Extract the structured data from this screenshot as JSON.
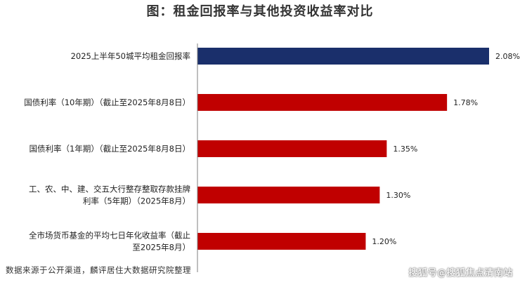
{
  "title": "图：租金回报率与其他投资收益率对比",
  "source": "数据来源于公开渠道，麟评居住大数据研究院整理",
  "watermark": "搜狐号@搜狐焦点清南站",
  "colors": {
    "highlight": "#1a2f6b",
    "other": "#c00000",
    "axis": "#7f7f7f"
  },
  "chart_data": {
    "type": "bar",
    "orientation": "horizontal",
    "title": "图：租金回报率与其他投资收益率对比",
    "categories": [
      [
        "2025上半年50城平均租金回报率"
      ],
      [
        "国债利率（10年期）（截止至2025年8月8日）"
      ],
      [
        "国债利率（1年期）（截止至2025年8月8日）"
      ],
      [
        "工、农、中、建、交五大行整存整取存款挂牌",
        "利率（5年期）（2025年8月）"
      ],
      [
        "全市场货币基金的平均七日年化收益率（截止",
        "至2025年8月）"
      ]
    ],
    "values": [
      2.08,
      1.78,
      1.35,
      1.3,
      1.2
    ],
    "value_labels": [
      "2.08%",
      "1.78%",
      "1.35%",
      "1.30%",
      "1.20%"
    ],
    "bar_colors": [
      "#1a2f6b",
      "#c00000",
      "#c00000",
      "#c00000",
      "#c00000"
    ],
    "xlim": [
      0,
      2.08
    ],
    "grid": false,
    "legend": "none"
  }
}
